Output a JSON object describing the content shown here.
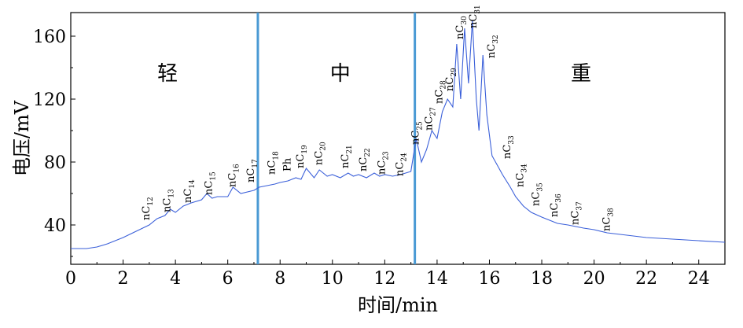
{
  "chart_data": {
    "type": "line",
    "xlabel": "时间/min",
    "ylabel": "电压/mV",
    "xlim": [
      0,
      25
    ],
    "ylim": [
      15,
      175
    ],
    "xticks": [
      0,
      2,
      4,
      6,
      8,
      10,
      12,
      14,
      16,
      18,
      20,
      22,
      24
    ],
    "yticks": [
      40,
      80,
      120,
      160
    ],
    "grid": false,
    "series": [
      {
        "color": "#3a5fd9",
        "x": [
          0,
          0.6,
          1,
          1.4,
          2,
          2.5,
          3,
          3.3,
          3.6,
          3.8,
          4,
          4.3,
          4.6,
          5,
          5.2,
          5.4,
          5.6,
          6,
          6.2,
          6.5,
          7,
          7.2,
          7.5,
          7.8,
          8,
          8.3,
          8.6,
          8.8,
          9,
          9.3,
          9.5,
          9.8,
          10,
          10.3,
          10.6,
          10.8,
          11,
          11.3,
          11.6,
          11.8,
          12,
          12.3,
          12.6,
          13,
          13.2,
          13.4,
          13.6,
          13.8,
          14,
          14.2,
          14.4,
          14.6,
          14.75,
          14.9,
          15.05,
          15.2,
          15.35,
          15.5,
          15.6,
          15.75,
          15.9,
          16.1,
          16.3,
          16.5,
          16.8,
          17,
          17.3,
          17.6,
          18,
          18.3,
          18.6,
          19,
          19.3,
          19.6,
          20,
          20.5,
          21,
          22,
          23,
          24,
          25
        ],
        "y": [
          25,
          25,
          26,
          28,
          32,
          36,
          40,
          44,
          46,
          50,
          48,
          52,
          54,
          56,
          60,
          57,
          58,
          58,
          64,
          60,
          62,
          64,
          65,
          66,
          67,
          68,
          70,
          69,
          76,
          70,
          75,
          71,
          72,
          70,
          73,
          71,
          72,
          70,
          73,
          71,
          72,
          71,
          72,
          74,
          95,
          80,
          88,
          100,
          95,
          112,
          120,
          115,
          155,
          120,
          165,
          130,
          170,
          120,
          100,
          148,
          110,
          84,
          78,
          72,
          64,
          58,
          52,
          48,
          45,
          43,
          41,
          40,
          39,
          38,
          37,
          35,
          34,
          32,
          31,
          30,
          29
        ]
      }
    ],
    "dividers": [
      7.15,
      13.15
    ],
    "divider_color": "#4a9ad4",
    "regions": [
      {
        "text": "轻",
        "x": 3.7,
        "y": 132
      },
      {
        "text": "中",
        "x": 10.3,
        "y": 132
      },
      {
        "text": "重",
        "x": 19.5,
        "y": 132
      }
    ],
    "annotations": [
      {
        "base": "nC",
        "sub": "12",
        "x": 3.0,
        "y": 43
      },
      {
        "base": "nC",
        "sub": "13",
        "x": 3.8,
        "y": 48
      },
      {
        "base": "nC",
        "sub": "14",
        "x": 4.6,
        "y": 54
      },
      {
        "base": "nC",
        "sub": "15",
        "x": 5.4,
        "y": 59
      },
      {
        "base": "nC",
        "sub": "16",
        "x": 6.3,
        "y": 64
      },
      {
        "base": "nC",
        "sub": "17",
        "x": 7.0,
        "y": 67
      },
      {
        "base": "nC",
        "sub": "18",
        "x": 7.8,
        "y": 72
      },
      {
        "base": "Ph",
        "sub": "",
        "x": 8.4,
        "y": 74
      },
      {
        "base": "nC",
        "sub": "19",
        "x": 8.9,
        "y": 76
      },
      {
        "base": "nC",
        "sub": "20",
        "x": 9.6,
        "y": 78
      },
      {
        "base": "nC",
        "sub": "21",
        "x": 10.6,
        "y": 76
      },
      {
        "base": "nC",
        "sub": "22",
        "x": 11.3,
        "y": 74
      },
      {
        "base": "nC",
        "sub": "23",
        "x": 12.0,
        "y": 72
      },
      {
        "base": "nC",
        "sub": "24",
        "x": 12.7,
        "y": 71
      },
      {
        "base": "nC",
        "sub": "25",
        "x": 13.3,
        "y": 91
      },
      {
        "base": "nC",
        "sub": "27",
        "x": 13.8,
        "y": 100
      },
      {
        "base": "nC",
        "sub": "28",
        "x": 14.2,
        "y": 117
      },
      {
        "base": "nC",
        "sub": "29",
        "x": 14.6,
        "y": 125
      },
      {
        "base": "nC",
        "sub": "30",
        "x": 15.0,
        "y": 158
      },
      {
        "base": "nC",
        "sub": "31",
        "x": 15.5,
        "y": 165
      },
      {
        "base": "nC",
        "sub": "32",
        "x": 16.2,
        "y": 146
      },
      {
        "base": "nC",
        "sub": "33",
        "x": 16.8,
        "y": 82
      },
      {
        "base": "nC",
        "sub": "34",
        "x": 17.3,
        "y": 64
      },
      {
        "base": "nC",
        "sub": "35",
        "x": 17.9,
        "y": 52
      },
      {
        "base": "nC",
        "sub": "36",
        "x": 18.6,
        "y": 45
      },
      {
        "base": "nC",
        "sub": "37",
        "x": 19.4,
        "y": 40
      },
      {
        "base": "nC",
        "sub": "38",
        "x": 20.6,
        "y": 36
      }
    ]
  }
}
